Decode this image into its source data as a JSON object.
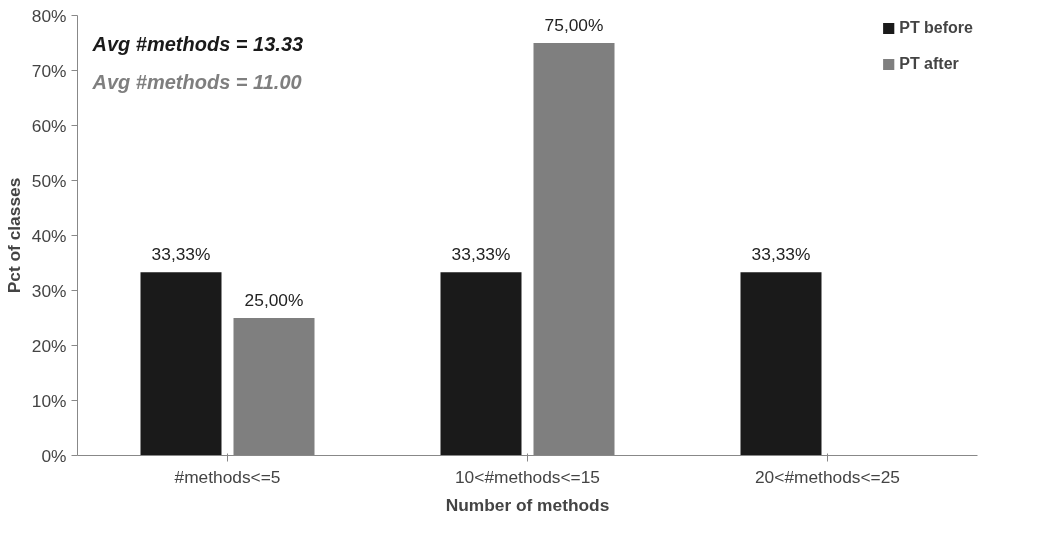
{
  "chart_data": {
    "type": "bar",
    "xlabel": "Number of methods",
    "ylabel": "Pct of classes",
    "categories": [
      "#methods<=5",
      "10<#methods<=15",
      "20<#methods<=25"
    ],
    "series": [
      {
        "name": "PT before",
        "color": "#1a1a1a",
        "values": [
          33.33,
          33.33,
          33.33
        ],
        "value_labels": [
          "33,33%",
          "33,33%",
          "33,33%"
        ]
      },
      {
        "name": "PT after",
        "color": "#7f7f7f",
        "values": [
          25,
          75,
          null
        ],
        "value_labels": [
          "25,00%",
          "75,00%",
          null
        ]
      }
    ],
    "ylim": [
      0,
      80
    ],
    "yticks": [
      {
        "value": 0,
        "label": "0%"
      },
      {
        "value": 10,
        "label": "10%"
      },
      {
        "value": 20,
        "label": "20%"
      },
      {
        "value": 30,
        "label": "30%"
      },
      {
        "value": 40,
        "label": "40%"
      },
      {
        "value": 50,
        "label": "50%"
      },
      {
        "value": 60,
        "label": "60%"
      },
      {
        "value": 70,
        "label": "70%"
      },
      {
        "value": 80,
        "label": "80%"
      }
    ],
    "annotations": [
      "Avg #methods = 13.33",
      "Avg #methods = 11.00"
    ],
    "legend": "top right"
  }
}
